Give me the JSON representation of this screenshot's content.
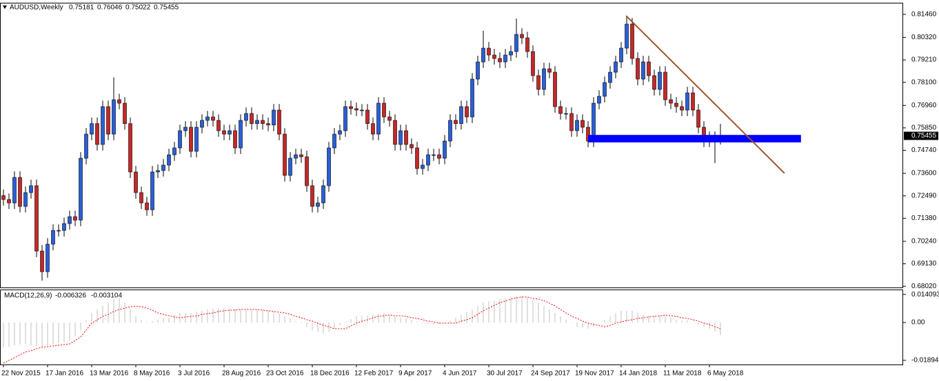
{
  "chart_data": [
    {
      "type": "candlestick",
      "title": "AUDUSD,Weekly",
      "categories": [
        "22 Nov 2015",
        null,
        null,
        null,
        null,
        null,
        null,
        null,
        "17 Jan 2016",
        null,
        null,
        null,
        null,
        null,
        null,
        null,
        "13 Mar 2016",
        null,
        null,
        null,
        null,
        null,
        null,
        null,
        "8 May 2016",
        null,
        null,
        null,
        null,
        null,
        null,
        null,
        "3 Jul 2016",
        null,
        null,
        null,
        null,
        null,
        null,
        null,
        "28 Aug 2016",
        null,
        null,
        null,
        null,
        null,
        null,
        null,
        "23 Oct 2016",
        null,
        null,
        null,
        null,
        null,
        null,
        null,
        "18 Dec 2016",
        null,
        null,
        null,
        null,
        null,
        null,
        null,
        "12 Feb 2017",
        null,
        null,
        null,
        null,
        null,
        null,
        null,
        "9 Apr 2017",
        null,
        null,
        null,
        null,
        null,
        null,
        null,
        "4 Jun 2017",
        null,
        null,
        null,
        null,
        null,
        null,
        null,
        "30 Jul 2017",
        null,
        null,
        null,
        null,
        null,
        null,
        null,
        "24 Sep 2017",
        null,
        null,
        null,
        null,
        null,
        null,
        null,
        "19 Nov 2017",
        null,
        null,
        null,
        null,
        null,
        null,
        null,
        "14 Jan 2018",
        null,
        null,
        null,
        null,
        null,
        null,
        null,
        "11 Mar 2018",
        null,
        null,
        null,
        null,
        null,
        null,
        null,
        "6 May 2018",
        null,
        null
      ],
      "open": [
        0.725,
        0.7231,
        0.7214,
        0.734,
        0.7197,
        0.7265,
        0.7299,
        0.6976,
        0.6874,
        0.701,
        0.7078,
        0.7078,
        0.7112,
        0.7146,
        0.7129,
        0.7435,
        0.7554,
        0.7606,
        0.7503,
        0.769,
        0.7554,
        0.7724,
        0.7707,
        0.7606,
        0.7367,
        0.7265,
        0.7214,
        0.718,
        0.7367,
        0.7374,
        0.7401,
        0.7452,
        0.7486,
        0.7571,
        0.7588,
        0.7469,
        0.7588,
        0.7622,
        0.7639,
        0.7622,
        0.7571,
        0.7554,
        0.7571,
        0.7486,
        0.7622,
        0.7656,
        0.7606,
        0.7622,
        0.7606,
        0.7599,
        0.7673,
        0.7554,
        0.735,
        0.7435,
        0.7452,
        0.7442,
        0.7299,
        0.7197,
        0.7214,
        0.7299,
        0.7486,
        0.7554,
        0.7571,
        0.769,
        0.768,
        0.7673,
        0.7673,
        0.7606,
        0.7554,
        0.7707,
        0.7639,
        0.7622,
        0.7503,
        0.7571,
        0.7503,
        0.7486,
        0.7384,
        0.7401,
        0.7452,
        0.7452,
        0.7435,
        0.752,
        0.7622,
        0.7606,
        0.769,
        0.7639,
        0.7826,
        0.7911,
        0.7979,
        0.7945,
        0.7928,
        0.7911,
        0.7945,
        0.7962,
        0.8047,
        0.803,
        0.7962,
        0.7843,
        0.7775,
        0.7877,
        0.786,
        0.769,
        0.7656,
        0.7656,
        0.7571,
        0.7622,
        0.7588,
        0.752,
        0.7707,
        0.7741,
        0.7809,
        0.786,
        0.7911,
        0.7979,
        0.8098,
        0.7928,
        0.7826,
        0.7911,
        0.7843,
        0.7775,
        0.786,
        0.7724,
        0.7707,
        0.769,
        0.7673,
        0.7758,
        0.7673,
        0.7588,
        0.752,
        0.7537,
        0.75181
      ],
      "high": [
        0.728,
        0.7261,
        0.737,
        0.737,
        0.7295,
        0.7329,
        0.7329,
        0.7006,
        0.704,
        0.7108,
        0.7108,
        0.7142,
        0.7176,
        0.7176,
        0.7465,
        0.7584,
        0.7636,
        0.7636,
        0.772,
        0.772,
        0.7835,
        0.7754,
        0.7737,
        0.7636,
        0.7397,
        0.7295,
        0.7244,
        0.7397,
        0.7404,
        0.7431,
        0.7482,
        0.7516,
        0.7601,
        0.7618,
        0.7618,
        0.7618,
        0.7652,
        0.7669,
        0.7669,
        0.7652,
        0.7601,
        0.7601,
        0.7601,
        0.7652,
        0.7686,
        0.7686,
        0.7652,
        0.7652,
        0.7636,
        0.7703,
        0.7703,
        0.7584,
        0.7465,
        0.7482,
        0.7482,
        0.7472,
        0.7329,
        0.7244,
        0.7329,
        0.7516,
        0.7584,
        0.7601,
        0.772,
        0.772,
        0.771,
        0.7703,
        0.7703,
        0.7636,
        0.7737,
        0.7737,
        0.7669,
        0.7652,
        0.7601,
        0.7601,
        0.7533,
        0.7516,
        0.7431,
        0.7482,
        0.7482,
        0.7482,
        0.755,
        0.7652,
        0.7652,
        0.772,
        0.772,
        0.7856,
        0.7941,
        0.8065,
        0.8009,
        0.7975,
        0.7958,
        0.7975,
        0.7992,
        0.8125,
        0.8077,
        0.806,
        0.7992,
        0.7873,
        0.7907,
        0.7907,
        0.789,
        0.772,
        0.7686,
        0.7686,
        0.7652,
        0.7652,
        0.7618,
        0.7737,
        0.7771,
        0.7839,
        0.789,
        0.7941,
        0.8009,
        0.8138,
        0.8128,
        0.7958,
        0.7941,
        0.7941,
        0.7873,
        0.789,
        0.789,
        0.7754,
        0.7737,
        0.772,
        0.7788,
        0.7788,
        0.7703,
        0.7618,
        0.7567,
        0.7567,
        0.76046
      ],
      "low": [
        0.7201,
        0.7184,
        0.7184,
        0.7167,
        0.7167,
        0.7235,
        0.6946,
        0.683,
        0.6844,
        0.698,
        0.7048,
        0.7048,
        0.7082,
        0.7099,
        0.7099,
        0.7405,
        0.7524,
        0.7473,
        0.7473,
        0.7524,
        0.7524,
        0.7677,
        0.7576,
        0.7337,
        0.7235,
        0.7184,
        0.715,
        0.715,
        0.7337,
        0.7344,
        0.7371,
        0.7422,
        0.7456,
        0.7541,
        0.7439,
        0.7439,
        0.7558,
        0.7592,
        0.7592,
        0.7541,
        0.7524,
        0.7524,
        0.7456,
        0.7456,
        0.7592,
        0.7576,
        0.7576,
        0.7576,
        0.7569,
        0.7569,
        0.7524,
        0.732,
        0.732,
        0.7405,
        0.7412,
        0.7269,
        0.7167,
        0.7167,
        0.7184,
        0.7269,
        0.7456,
        0.7524,
        0.7541,
        0.765,
        0.7643,
        0.7643,
        0.7576,
        0.7524,
        0.7524,
        0.7609,
        0.7592,
        0.7473,
        0.7473,
        0.7473,
        0.7456,
        0.7354,
        0.7354,
        0.7371,
        0.7422,
        0.7405,
        0.7405,
        0.749,
        0.7576,
        0.7576,
        0.7609,
        0.7609,
        0.7796,
        0.7881,
        0.7915,
        0.7898,
        0.7881,
        0.7881,
        0.7915,
        0.7932,
        0.8,
        0.7932,
        0.7813,
        0.7745,
        0.7745,
        0.783,
        0.766,
        0.7626,
        0.7626,
        0.7541,
        0.7541,
        0.7558,
        0.749,
        0.749,
        0.7677,
        0.7711,
        0.7779,
        0.783,
        0.7881,
        0.7949,
        0.7898,
        0.7796,
        0.7796,
        0.7813,
        0.7745,
        0.7745,
        0.7694,
        0.7677,
        0.766,
        0.7643,
        0.7643,
        0.7643,
        0.7558,
        0.749,
        0.749,
        0.7411,
        0.75022
      ],
      "close": [
        0.7231,
        0.7214,
        0.734,
        0.7197,
        0.7265,
        0.7299,
        0.6976,
        0.6874,
        0.701,
        0.7078,
        0.7078,
        0.7112,
        0.7146,
        0.7129,
        0.7435,
        0.7554,
        0.7606,
        0.7503,
        0.769,
        0.7554,
        0.7724,
        0.7707,
        0.7606,
        0.7367,
        0.7265,
        0.7214,
        0.718,
        0.7367,
        0.7374,
        0.7401,
        0.7452,
        0.7486,
        0.7571,
        0.7588,
        0.7469,
        0.7588,
        0.7622,
        0.7639,
        0.7622,
        0.7571,
        0.7554,
        0.7571,
        0.7486,
        0.7622,
        0.7656,
        0.7606,
        0.7622,
        0.7606,
        0.7599,
        0.7673,
        0.7554,
        0.735,
        0.7435,
        0.7452,
        0.7442,
        0.7299,
        0.7197,
        0.7214,
        0.7299,
        0.7486,
        0.7554,
        0.7571,
        0.769,
        0.768,
        0.7673,
        0.7673,
        0.7606,
        0.7554,
        0.7707,
        0.7639,
        0.7622,
        0.7503,
        0.7571,
        0.7503,
        0.7486,
        0.7384,
        0.7401,
        0.7452,
        0.7452,
        0.7435,
        0.752,
        0.7622,
        0.7606,
        0.769,
        0.7639,
        0.7826,
        0.7911,
        0.7979,
        0.7945,
        0.7928,
        0.7911,
        0.7945,
        0.7962,
        0.8047,
        0.803,
        0.7962,
        0.7843,
        0.7775,
        0.7877,
        0.786,
        0.769,
        0.7656,
        0.7656,
        0.7571,
        0.7622,
        0.7588,
        0.752,
        0.7707,
        0.7741,
        0.7809,
        0.786,
        0.7911,
        0.7979,
        0.8098,
        0.7928,
        0.7826,
        0.7911,
        0.7843,
        0.7775,
        0.786,
        0.7724,
        0.7707,
        0.769,
        0.7673,
        0.7758,
        0.7673,
        0.7588,
        0.752,
        0.7537,
        0.75181,
        0.75455
      ],
      "up_color": "#2a5fd8",
      "down_color": "#c62828",
      "ylim": [
        0.6796,
        0.82
      ],
      "yticks": [
        {
          "value": 0.8146,
          "label": "0.81460"
        },
        {
          "value": 0.8032,
          "label": "0.80320"
        },
        {
          "value": 0.7921,
          "label": "0.79210"
        },
        {
          "value": 0.781,
          "label": "0.78100"
        },
        {
          "value": 0.7696,
          "label": "0.76960"
        },
        {
          "value": 0.7585,
          "label": "0.75850"
        },
        {
          "value": 0.7474,
          "label": "0.74740"
        },
        {
          "value": 0.736,
          "label": "0.73600"
        },
        {
          "value": 0.7249,
          "label": "0.72490"
        },
        {
          "value": 0.7138,
          "label": "0.71380"
        },
        {
          "value": 0.7024,
          "label": "0.70240"
        },
        {
          "value": 0.6913,
          "label": "0.69130"
        },
        {
          "value": 0.6802,
          "label": "0.68020"
        }
      ],
      "annotations": [
        {
          "kind": "rectangle",
          "x": [
            106,
            144.6
          ],
          "y": [
            0.7513,
            0.755
          ],
          "color": "#0000ff"
        },
        {
          "kind": "trendline",
          "x": [
            112.9,
            141.6
          ],
          "y": [
            0.8139,
            0.7361
          ],
          "color": "#a0522d"
        }
      ]
    },
    {
      "type": "macd",
      "title": "MACD(12,26,9)",
      "series": [
        {
          "style": "histogram",
          "color": "#c0c0c0",
          "values": [
            -0.0124,
            -0.0121,
            -0.0114,
            -0.011,
            -0.0107,
            -0.0114,
            -0.0117,
            -0.0124,
            -0.0117,
            -0.011,
            -0.0103,
            -0.0097,
            -0.009,
            -0.0066,
            -0.0038,
            0.0014,
            0.0048,
            0.0066,
            0.0083,
            0.01,
            0.0117,
            0.0124,
            0.01,
            0.0066,
            0.0031,
            0.0014,
            -0.0003,
            0.0007,
            0.0014,
            0.0021,
            0.0024,
            0.0038,
            0.0048,
            0.0048,
            0.0048,
            0.0055,
            0.0059,
            0.0066,
            0.0069,
            0.0069,
            0.0072,
            0.0069,
            0.0069,
            0.0066,
            0.0066,
            0.0066,
            0.0066,
            0.0062,
            0.0062,
            0.0059,
            0.0045,
            0.0031,
            0.0021,
            0.0007,
            -0.0003,
            -0.0021,
            -0.0038,
            -0.0048,
            -0.0055,
            -0.0045,
            -0.0031,
            -0.0014,
            0.0003,
            0.0017,
            0.0031,
            0.0034,
            0.0034,
            0.0038,
            0.0045,
            0.0048,
            0.0038,
            0.0031,
            0.0024,
            0.0021,
            0.0014,
            0.0003,
            -0.0003,
            -0.0007,
            -0.001,
            -0.0007,
            -0.0003,
            0.001,
            0.0024,
            0.0038,
            0.0052,
            0.0066,
            0.0083,
            0.01,
            0.0107,
            0.011,
            0.0117,
            0.0121,
            0.0128,
            0.0131,
            0.0134,
            0.0124,
            0.0114,
            0.01,
            0.0083,
            0.0066,
            0.0048,
            0.0031,
            0.0014,
            -0.0003,
            -0.0021,
            -0.0028,
            -0.0031,
            -0.0017,
            -0.0003,
            0.0014,
            0.0031,
            0.0045,
            0.0059,
            0.0059,
            0.0059,
            0.0048,
            0.0038,
            0.0034,
            0.0031,
            0.0034,
            0.0038,
            0.0024,
            0.0014,
            0.001,
            0.001,
            0.0,
            -0.001,
            -0.0021,
            -0.0031,
            -0.0045,
            -0.006326
          ]
        },
        {
          "style": "dashed-line",
          "color": "#ff0000",
          "values": [
            -0.0203,
            -0.019,
            -0.0176,
            -0.0162,
            -0.0148,
            -0.0141,
            -0.0131,
            -0.0124,
            -0.0121,
            -0.0117,
            -0.0114,
            -0.011,
            -0.0107,
            -0.009,
            -0.0072,
            -0.0038,
            -0.0003,
            0.0014,
            0.0031,
            0.0041,
            0.0055,
            0.0066,
            0.0072,
            0.0079,
            0.0083,
            0.0079,
            0.0072,
            0.0062,
            0.0048,
            0.0041,
            0.0034,
            0.0028,
            0.0024,
            0.0028,
            0.0031,
            0.0034,
            0.0041,
            0.0045,
            0.0048,
            0.0055,
            0.0059,
            0.0062,
            0.0062,
            0.0066,
            0.0066,
            0.0066,
            0.0066,
            0.0062,
            0.0059,
            0.0055,
            0.0052,
            0.0048,
            0.0041,
            0.0031,
            0.0024,
            0.0014,
            0.0007,
            -0.0003,
            -0.0014,
            -0.0021,
            -0.0031,
            -0.0031,
            -0.0031,
            -0.0017,
            -0.0003,
            0.0007,
            0.0014,
            0.0024,
            0.0031,
            0.0034,
            0.0038,
            0.0034,
            0.0034,
            0.0031,
            0.0024,
            0.0021,
            0.0014,
            0.0007,
            0.0003,
            -0.0003,
            -0.0003,
            -0.0003,
            -0.0003,
            0.0007,
            0.0014,
            0.0024,
            0.0041,
            0.0059,
            0.0072,
            0.0086,
            0.01,
            0.0107,
            0.0117,
            0.0124,
            0.0128,
            0.0128,
            0.0121,
            0.0117,
            0.011,
            0.0097,
            0.0083,
            0.0066,
            0.0048,
            0.0031,
            0.0021,
            0.0007,
            -0.0003,
            -0.001,
            -0.0014,
            -0.0021,
            -0.0014,
            -0.0003,
            0.0003,
            0.001,
            0.0014,
            0.0021,
            0.0024,
            0.0028,
            0.0031,
            0.0034,
            0.0038,
            0.0034,
            0.0031,
            0.0024,
            0.0021,
            0.0014,
            0.0007,
            -0.0003,
            -0.001,
            -0.0021,
            -0.003104
          ]
        }
      ],
      "ylim": [
        -0.02103,
        0.01655
      ],
      "yticks": [
        0.014093,
        {
          "value": 0,
          "label": "0.00"
        },
        -0.01894
      ]
    }
  ]
}
